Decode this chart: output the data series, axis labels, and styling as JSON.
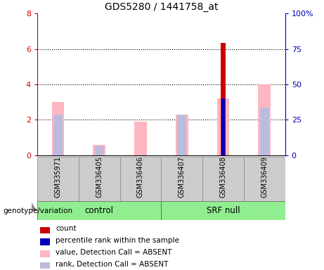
{
  "title": "GDS5280 / 1441758_at",
  "samples": [
    "GSM335971",
    "GSM336405",
    "GSM336406",
    "GSM336407",
    "GSM336408",
    "GSM336409"
  ],
  "ylim_left": [
    0,
    8
  ],
  "ylim_right": [
    0,
    100
  ],
  "yticks_left": [
    0,
    2,
    4,
    6,
    8
  ],
  "ytick_labels_left": [
    "0",
    "2",
    "4",
    "6",
    "8"
  ],
  "yticks_right": [
    0,
    25,
    50,
    75,
    100
  ],
  "ytick_labels_right": [
    "0",
    "25",
    "50",
    "75",
    "100%"
  ],
  "count_values": [
    0,
    0,
    0,
    0,
    6.35,
    0
  ],
  "percentile_values": [
    0,
    0,
    0,
    0,
    3.2,
    0
  ],
  "pink_bar_values": [
    3.0,
    0.6,
    1.9,
    2.3,
    3.2,
    4.0
  ],
  "blue_bar_values": [
    2.3,
    0.5,
    0,
    2.3,
    0,
    2.7
  ],
  "count_color": "#CC0000",
  "percentile_color": "#0000BB",
  "pink_color": "#FFB6C1",
  "blue_color": "#BBBBDD",
  "left_yaxis_color": "#CC0000",
  "right_yaxis_color": "#0000BB",
  "group_green": "#90EE90",
  "gray_table": "#CCCCCC",
  "legend_items": [
    [
      "#CC0000",
      "count"
    ],
    [
      "#0000BB",
      "percentile rank within the sample"
    ],
    [
      "#FFB6C1",
      "value, Detection Call = ABSENT"
    ],
    [
      "#BBBBDD",
      "rank, Detection Call = ABSENT"
    ]
  ]
}
